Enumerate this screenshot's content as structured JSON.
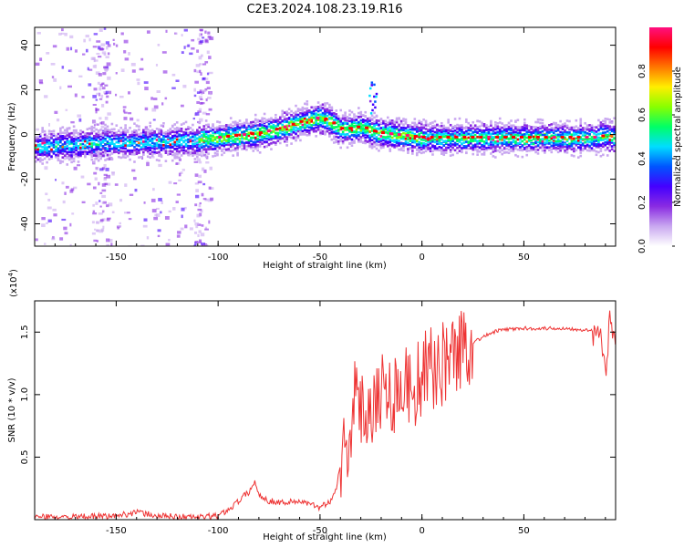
{
  "title": "C2E3.2024.108.23.19.R16",
  "chart_data": [
    {
      "type": "heatmap",
      "title": "C2E3.2024.108.23.19.R16",
      "xlabel": "Height of straight line (km)",
      "ylabel": "Frequency (Hz)",
      "xlim": [
        -190,
        95
      ],
      "ylim": [
        -50,
        48
      ],
      "x_ticks": [
        -150,
        -100,
        -50,
        0,
        50
      ],
      "y_ticks": [
        -40,
        -20,
        0,
        20,
        40
      ],
      "x_tick_labels": [
        "-150",
        "-100",
        "-50",
        "0",
        "50"
      ],
      "y_tick_labels": [
        "-40",
        "-20",
        "0",
        "20",
        "40"
      ],
      "ridge": {
        "x": [
          -190,
          -170,
          -150,
          -130,
          -110,
          -100,
          -90,
          -80,
          -70,
          -60,
          -55,
          -50,
          -45,
          -40,
          -35,
          -30,
          -25,
          -20,
          -10,
          0,
          10,
          30,
          50,
          70,
          85,
          90,
          95
        ],
        "frequency": [
          -5,
          -4,
          -3,
          -3,
          -2,
          -1,
          0,
          1,
          3,
          6,
          7,
          8,
          6,
          3,
          3,
          4,
          2,
          1,
          0,
          -1,
          -1,
          -1,
          -1,
          -1,
          -1,
          0,
          -1
        ]
      },
      "colorbar": {
        "label": "Normalized spectral amplitude",
        "range": [
          0,
          1
        ],
        "ticks": [
          0.0,
          0.2,
          0.4,
          0.6,
          0.8
        ],
        "tick_labels": [
          "0.0",
          "0.2",
          "0.4",
          "0.6",
          "0.8"
        ],
        "colormap": [
          "#ffffff",
          "#c9a8f0",
          "#8a2be2",
          "#4400ff",
          "#0055ff",
          "#00ddff",
          "#00ff66",
          "#88ff00",
          "#ffee00",
          "#ff7700",
          "#ff0000",
          "#ff1080"
        ]
      }
    },
    {
      "type": "line",
      "xlabel": "Height of straight line (km)",
      "ylabel": "SNR (10 * v/v)",
      "y_scale_label": "(x10",
      "y_scale_exp": "4",
      "y_scale_close": ")",
      "xlim": [
        -190,
        95
      ],
      "ylim": [
        0,
        1.75
      ],
      "x_ticks": [
        -150,
        -100,
        -50,
        0,
        50
      ],
      "y_ticks": [
        0.5,
        1.0,
        1.5
      ],
      "x_tick_labels": [
        "-150",
        "-100",
        "-50",
        "0",
        "50"
      ],
      "y_tick_labels": [
        "0.5",
        "1.0",
        "1.5"
      ],
      "series": [
        {
          "color": "#ee3333",
          "x": [
            -190,
            -170,
            -150,
            -140,
            -130,
            -110,
            -100,
            -95,
            -90,
            -85,
            -82,
            -80,
            -75,
            -70,
            -65,
            -60,
            -55,
            -50,
            -45,
            -42,
            -40,
            -38,
            -35,
            -33,
            -30,
            -25,
            -20,
            -15,
            -10,
            -5,
            0,
            5,
            10,
            15,
            20,
            25,
            30,
            35,
            40,
            50,
            60,
            70,
            80,
            85,
            88,
            90,
            92,
            95
          ],
          "y": [
            0.02,
            0.02,
            0.03,
            0.06,
            0.03,
            0.02,
            0.03,
            0.08,
            0.15,
            0.22,
            0.3,
            0.2,
            0.15,
            0.14,
            0.14,
            0.15,
            0.12,
            0.1,
            0.15,
            0.25,
            0.45,
            0.55,
            0.75,
            0.95,
            0.85,
            0.95,
            1.05,
            1.0,
            1.1,
            1.05,
            1.15,
            1.2,
            1.25,
            1.32,
            1.38,
            1.42,
            1.46,
            1.5,
            1.52,
            1.53,
            1.53,
            1.53,
            1.52,
            1.5,
            1.4,
            1.2,
            1.55,
            1.52
          ]
        }
      ]
    }
  ]
}
